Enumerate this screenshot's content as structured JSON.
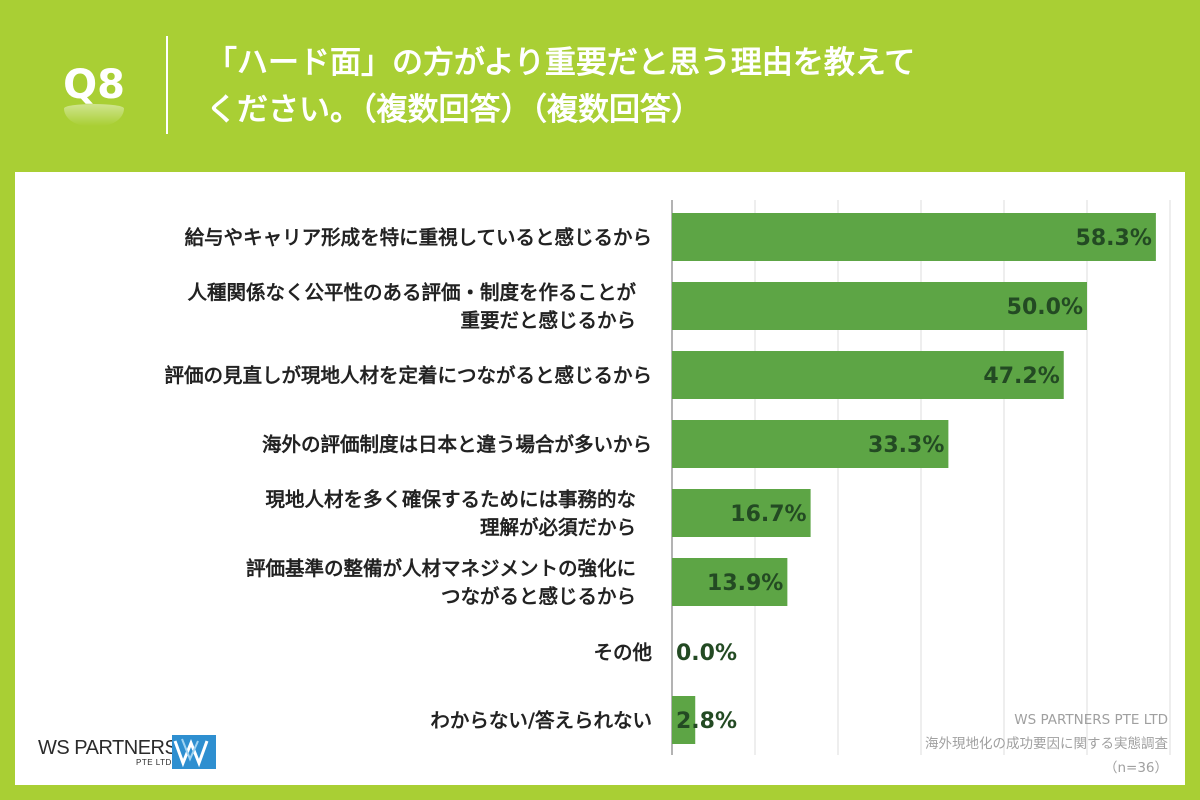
{
  "header": {
    "badge": "Q8",
    "title": "「ハード面」の方がより重要だと思う理由を教えて\nください。（複数回答）（複数回答）"
  },
  "footnote": {
    "company": "WS PARTNERS PTE LTD",
    "survey": "海外現地化の成功要因に関する実態調査",
    "sample": "（n=36）"
  },
  "logo": {
    "name": "WS PARTNERS",
    "sub": "PTE LTD"
  },
  "colors": {
    "background": "#a9cf34",
    "bar": "#5da545",
    "value_text": "#234a23"
  },
  "chart_data": {
    "type": "bar",
    "orientation": "horizontal",
    "categories": [
      "給与やキャリア形成を特に重視していると感じるから",
      "人種関係なく公平性のある評価・制度を作ることが\n重要だと感じるから",
      "評価の見直しが現地人材を定着につながると感じるから",
      "海外の評価制度は日本と違う場合が多いから",
      "現地人材を多く確保するためには事務的な\n理解が必須だから",
      "評価基準の整備が人材マネジメントの強化に\nつながると感じるから",
      "その他",
      "わからない/答えられない"
    ],
    "values": [
      58.3,
      50.0,
      47.2,
      33.3,
      16.7,
      13.9,
      0.0,
      2.8
    ],
    "value_labels": [
      "58.3%",
      "50.0%",
      "47.2%",
      "33.3%",
      "16.7%",
      "13.9%",
      "0.0%",
      "2.8%"
    ],
    "xlim": [
      0,
      60
    ],
    "grid": true
  }
}
